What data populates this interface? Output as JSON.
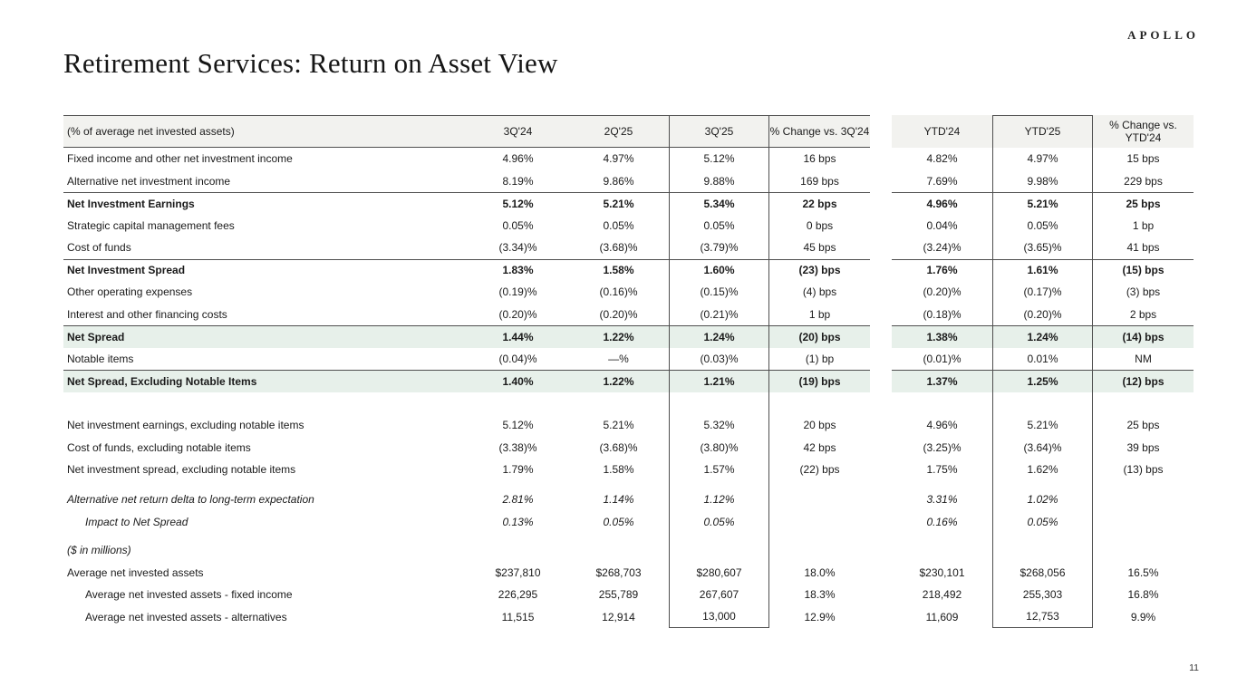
{
  "slide": {
    "logo": "APOLLO",
    "title": "Retirement Services: Return on Asset View",
    "page_number": "11"
  },
  "colors": {
    "header_bg": "#f2f2ef",
    "highlight_bg": "#e7f0ea",
    "rule": "#4f4f4f"
  },
  "table": {
    "columns": [
      "(% of average net invested assets)",
      "3Q'24",
      "2Q'25",
      "3Q'25",
      "% Change vs. 3Q'24",
      "YTD'24",
      "YTD'25",
      "% Change vs. YTD'24"
    ],
    "rows": [
      {
        "label": "Fixed income and other net investment income",
        "style": "",
        "values": [
          "4.96%",
          "4.97%",
          "5.12%",
          "16 bps",
          "4.82%",
          "4.97%",
          "15 bps"
        ]
      },
      {
        "label": "Alternative net investment income",
        "style": "",
        "values": [
          "8.19%",
          "9.86%",
          "9.88%",
          "169 bps",
          "7.69%",
          "9.98%",
          "229 bps"
        ]
      },
      {
        "label": "Net Investment Earnings",
        "style": "bold bt",
        "values": [
          "5.12%",
          "5.21%",
          "5.34%",
          "22 bps",
          "4.96%",
          "5.21%",
          "25 bps"
        ]
      },
      {
        "label": "Strategic capital management fees",
        "style": "",
        "values": [
          "0.05%",
          "0.05%",
          "0.05%",
          "0 bps",
          "0.04%",
          "0.05%",
          "1 bp"
        ]
      },
      {
        "label": "Cost of funds",
        "style": "",
        "values": [
          "(3.34)%",
          "(3.68)%",
          "(3.79)%",
          "45 bps",
          "(3.24)%",
          "(3.65)%",
          "41 bps"
        ]
      },
      {
        "label": "Net Investment Spread",
        "style": "bold bt",
        "values": [
          "1.83%",
          "1.58%",
          "1.60%",
          "(23) bps",
          "1.76%",
          "1.61%",
          "(15) bps"
        ]
      },
      {
        "label": "Other operating expenses",
        "style": "",
        "values": [
          "(0.19)%",
          "(0.16)%",
          "(0.15)%",
          "(4) bps",
          "(0.20)%",
          "(0.17)%",
          "(3) bps"
        ]
      },
      {
        "label": "Interest and other financing costs",
        "style": "",
        "values": [
          "(0.20)%",
          "(0.20)%",
          "(0.21)%",
          "1 bp",
          "(0.18)%",
          "(0.20)%",
          "2 bps"
        ]
      },
      {
        "label": "Net Spread",
        "style": "bold green bt",
        "values": [
          "1.44%",
          "1.22%",
          "1.24%",
          "(20) bps",
          "1.38%",
          "1.24%",
          "(14) bps"
        ]
      },
      {
        "label": "Notable items",
        "style": "",
        "values": [
          "(0.04)%",
          "—%",
          "(0.03)%",
          "(1) bp",
          "(0.01)%",
          "0.01%",
          "NM"
        ]
      },
      {
        "label": "Net Spread, Excluding Notable Items",
        "style": "bold green bt",
        "values": [
          "1.40%",
          "1.22%",
          "1.21%",
          "(19) bps",
          "1.37%",
          "1.25%",
          "(12) bps"
        ]
      },
      {
        "type": "spacer",
        "height": 24.5
      },
      {
        "label": "Net investment earnings, excluding notable items",
        "style": "",
        "values": [
          "5.12%",
          "5.21%",
          "5.32%",
          "20 bps",
          "4.96%",
          "5.21%",
          "25 bps"
        ]
      },
      {
        "label": "Cost of funds, excluding notable items",
        "style": "",
        "values": [
          "(3.38)%",
          "(3.68)%",
          "(3.80)%",
          "42 bps",
          "(3.25)%",
          "(3.64)%",
          "39 bps"
        ]
      },
      {
        "label": "Net investment spread, excluding notable items",
        "style": "",
        "values": [
          "1.79%",
          "1.58%",
          "1.57%",
          "(22) bps",
          "1.75%",
          "1.62%",
          "(13) bps"
        ]
      },
      {
        "type": "spacer",
        "height": 8.5
      },
      {
        "label": "Alternative net return delta to long-term expectation",
        "style": "italic",
        "values": [
          "2.81%",
          "1.14%",
          "1.12%",
          "",
          "3.31%",
          "1.02%",
          ""
        ]
      },
      {
        "label": "Impact to Net Spread",
        "style": "italic indent",
        "values": [
          "0.13%",
          "0.05%",
          "0.05%",
          "",
          "0.16%",
          "0.05%",
          ""
        ]
      },
      {
        "type": "spacer",
        "height": 7
      },
      {
        "label": "($ in millions)",
        "style": "italic",
        "values": [
          "",
          "",
          "",
          "",
          "",
          "",
          ""
        ]
      },
      {
        "label": "Average net invested assets",
        "style": "",
        "values": [
          "$237,810",
          "$268,703",
          "$280,607",
          "18.0%",
          "$230,101",
          "$268,056",
          "16.5%"
        ]
      },
      {
        "label": "Average net invested assets - fixed income",
        "style": "indent",
        "values": [
          "226,295",
          "255,789",
          "267,607",
          "18.3%",
          "218,492",
          "255,303",
          "16.8%"
        ]
      },
      {
        "label": "Average net invested assets - alternatives",
        "style": "indent last",
        "values": [
          "11,515",
          "12,914",
          "13,000",
          "12.9%",
          "11,609",
          "12,753",
          "9.9%"
        ]
      }
    ]
  }
}
